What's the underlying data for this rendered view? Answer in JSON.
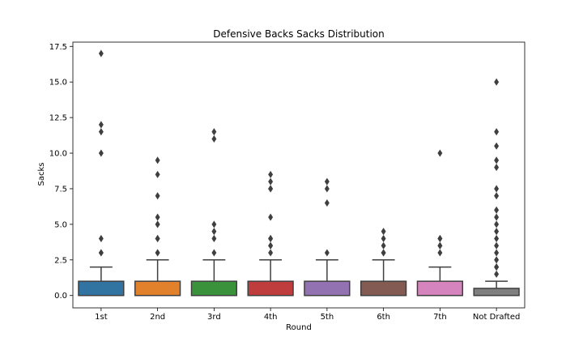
{
  "chart_data": {
    "type": "box",
    "title": "Defensive Backs Sacks Distribution",
    "xlabel": "Round",
    "ylabel": "Sacks",
    "ylim": [
      -0.87,
      17.8
    ],
    "yticks": [
      0.0,
      2.5,
      5.0,
      7.5,
      10.0,
      12.5,
      15.0,
      17.5
    ],
    "ytick_labels": [
      "0.0",
      "2.5",
      "5.0",
      "7.5",
      "10.0",
      "12.5",
      "15.0",
      "17.5"
    ],
    "grid": false,
    "categories": [
      "1st",
      "2nd",
      "3rd",
      "4th",
      "5th",
      "6th",
      "7th",
      "Not Drafted"
    ],
    "boxes": [
      {
        "category": "1st",
        "color": "#3274a1",
        "whisker_low": 0,
        "q1": 0,
        "median": 0,
        "q3": 1.0,
        "whisker_high": 2.0,
        "outliers": [
          3.0,
          3.0,
          4.0,
          10.0,
          11.5,
          12.0,
          17.0
        ]
      },
      {
        "category": "2nd",
        "color": "#e1812c",
        "whisker_low": 0,
        "q1": 0,
        "median": 0,
        "q3": 1.0,
        "whisker_high": 2.5,
        "outliers": [
          3.0,
          3.0,
          4.0,
          4.0,
          5.0,
          5.0,
          5.5,
          7.0,
          8.5,
          9.5
        ]
      },
      {
        "category": "3rd",
        "color": "#3a923a",
        "whisker_low": 0,
        "q1": 0,
        "median": 0,
        "q3": 1.0,
        "whisker_high": 2.5,
        "outliers": [
          3.0,
          4.0,
          4.5,
          5.0,
          11.0,
          11.5
        ]
      },
      {
        "category": "4th",
        "color": "#c03d3e",
        "whisker_low": 0,
        "q1": 0,
        "median": 0,
        "q3": 1.0,
        "whisker_high": 2.5,
        "outliers": [
          3.0,
          3.5,
          3.5,
          4.0,
          4.0,
          5.5,
          7.5,
          7.5,
          8.0,
          8.5
        ]
      },
      {
        "category": "5th",
        "color": "#9372b2",
        "whisker_low": 0,
        "q1": 0,
        "median": 0,
        "q3": 1.0,
        "whisker_high": 2.5,
        "outliers": [
          3.0,
          6.5,
          7.5,
          8.0
        ]
      },
      {
        "category": "6th",
        "color": "#845b53",
        "whisker_low": 0,
        "q1": 0,
        "median": 0,
        "q3": 1.0,
        "whisker_high": 2.5,
        "outliers": [
          3.0,
          3.0,
          3.5,
          4.0,
          4.5
        ]
      },
      {
        "category": "7th",
        "color": "#d684bd",
        "whisker_low": 0,
        "q1": 0,
        "median": 0,
        "q3": 1.0,
        "whisker_high": 2.0,
        "outliers": [
          3.0,
          3.5,
          3.5,
          4.0,
          4.0,
          10.0
        ]
      },
      {
        "category": "Not Drafted",
        "color": "#7f7f7f",
        "whisker_low": 0,
        "q1": 0,
        "median": 0,
        "q3": 0.5,
        "whisker_high": 1.0,
        "outliers": [
          1.5,
          2.0,
          2.0,
          2.5,
          3.0,
          3.5,
          4.0,
          4.5,
          5.0,
          5.5,
          6.0,
          7.0,
          7.5,
          9.0,
          9.5,
          10.5,
          11.5,
          15.0
        ]
      }
    ]
  }
}
